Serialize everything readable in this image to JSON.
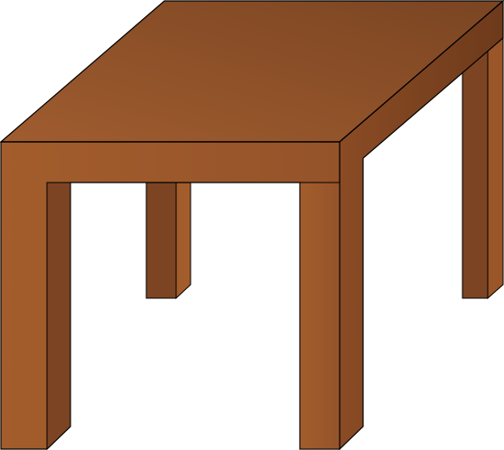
{
  "illustration": {
    "subject": "wooden-table",
    "colors": {
      "top_light": "#9c5a2e",
      "top_dark": "#7c4623",
      "front_face": "#9a5628",
      "side_face": "#7a4220",
      "leg_inner": "#7c4423",
      "leg_inner_dark": "#6c3a1c",
      "outline": "#000000",
      "background": "#ffffff"
    }
  }
}
